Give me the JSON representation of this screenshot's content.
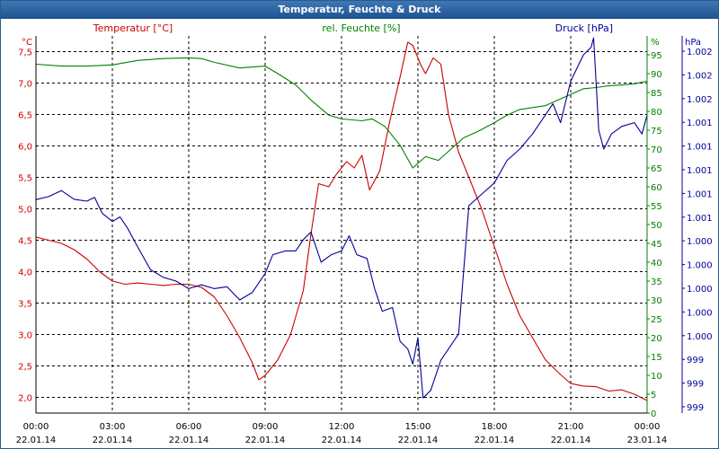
{
  "window": {
    "title": "Temperatur, Feuchte & Druck"
  },
  "colors": {
    "temp": "#cc0000",
    "hum": "#008000",
    "pres": "#000099",
    "grid": "#000000"
  },
  "chart_data": {
    "type": "line",
    "x_ticks": [
      {
        "time": "00:00",
        "date": "22.01.14"
      },
      {
        "time": "03:00",
        "date": "22.01.14"
      },
      {
        "time": "06:00",
        "date": "22.01.14"
      },
      {
        "time": "09:00",
        "date": "22.01.14"
      },
      {
        "time": "12:00",
        "date": "22.01.14"
      },
      {
        "time": "15:00",
        "date": "22.01.14"
      },
      {
        "time": "18:00",
        "date": "22.01.14"
      },
      {
        "time": "21:00",
        "date": "22.01.14"
      },
      {
        "time": "00:00",
        "date": "23.01.14"
      }
    ],
    "xlim_hours": [
      0,
      24
    ],
    "grid": true,
    "axes": {
      "temp": {
        "unit": "°C",
        "ylim": [
          1.75,
          7.75
        ],
        "ticks": [
          "2,0",
          "2,5",
          "3,0",
          "3,5",
          "4,0",
          "4,5",
          "5,0",
          "5,5",
          "6,0",
          "6,5",
          "7,0",
          "7,5"
        ]
      },
      "hum": {
        "unit": "%",
        "ylim": [
          0,
          100
        ],
        "ticks": [
          "0",
          "5",
          "10",
          "15",
          "20",
          "25",
          "30",
          "35",
          "40",
          "45",
          "50",
          "55",
          "60",
          "65",
          "70",
          "75",
          "80",
          "85",
          "90",
          "95"
        ]
      },
      "pres": {
        "unit": "hPa",
        "ticks": [
          "999",
          "999",
          "999",
          "1.000",
          "1.000",
          "1.000",
          "1.000",
          "1.000",
          "1.001",
          "1.001",
          "1.001",
          "1.001",
          "1.001",
          "1.002",
          "1.002",
          "1.002"
        ]
      }
    },
    "series": [
      {
        "name": "Temperatur [°C]",
        "axis": "temp",
        "points": [
          [
            0,
            4.55
          ],
          [
            0.5,
            4.5
          ],
          [
            1,
            4.45
          ],
          [
            1.5,
            4.35
          ],
          [
            2,
            4.2
          ],
          [
            2.5,
            4.0
          ],
          [
            3,
            3.85
          ],
          [
            3.5,
            3.8
          ],
          [
            4,
            3.82
          ],
          [
            4.5,
            3.8
          ],
          [
            5,
            3.78
          ],
          [
            5.5,
            3.8
          ],
          [
            6,
            3.8
          ],
          [
            6.5,
            3.75
          ],
          [
            7,
            3.6
          ],
          [
            7.5,
            3.3
          ],
          [
            8,
            2.95
          ],
          [
            8.5,
            2.55
          ],
          [
            8.75,
            2.28
          ],
          [
            9,
            2.35
          ],
          [
            9.5,
            2.6
          ],
          [
            10,
            3.0
          ],
          [
            10.5,
            3.7
          ],
          [
            10.8,
            4.6
          ],
          [
            11.1,
            5.4
          ],
          [
            11.5,
            5.35
          ],
          [
            11.8,
            5.55
          ],
          [
            12.2,
            5.75
          ],
          [
            12.5,
            5.65
          ],
          [
            12.8,
            5.85
          ],
          [
            13.1,
            5.3
          ],
          [
            13.5,
            5.6
          ],
          [
            13.9,
            6.4
          ],
          [
            14.3,
            7.1
          ],
          [
            14.6,
            7.65
          ],
          [
            14.8,
            7.6
          ],
          [
            15.1,
            7.3
          ],
          [
            15.3,
            7.15
          ],
          [
            15.6,
            7.4
          ],
          [
            15.9,
            7.3
          ],
          [
            16.2,
            6.5
          ],
          [
            16.6,
            5.9
          ],
          [
            17,
            5.5
          ],
          [
            17.5,
            5.0
          ],
          [
            18,
            4.4
          ],
          [
            18.5,
            3.8
          ],
          [
            19,
            3.3
          ],
          [
            19.5,
            2.95
          ],
          [
            20,
            2.6
          ],
          [
            20.5,
            2.4
          ],
          [
            21,
            2.22
          ],
          [
            21.5,
            2.18
          ],
          [
            22,
            2.17
          ],
          [
            22.5,
            2.1
          ],
          [
            23,
            2.12
          ],
          [
            23.5,
            2.05
          ],
          [
            24,
            1.95
          ]
        ]
      },
      {
        "name": "rel. Feuchte [%]",
        "axis": "hum",
        "points": [
          [
            0,
            92.5
          ],
          [
            1,
            92
          ],
          [
            2,
            92
          ],
          [
            3,
            92.3
          ],
          [
            4,
            93.5
          ],
          [
            5,
            94
          ],
          [
            6,
            94.2
          ],
          [
            6.5,
            94
          ],
          [
            7,
            93
          ],
          [
            8,
            91.5
          ],
          [
            9,
            92
          ],
          [
            9.5,
            90
          ],
          [
            10.2,
            87
          ],
          [
            10.8,
            83
          ],
          [
            11.5,
            79
          ],
          [
            12,
            78
          ],
          [
            12.8,
            77.5
          ],
          [
            13.2,
            78
          ],
          [
            13.7,
            76
          ],
          [
            14.3,
            71
          ],
          [
            14.8,
            65
          ],
          [
            15.3,
            68
          ],
          [
            15.8,
            67
          ],
          [
            16.3,
            70
          ],
          [
            16.8,
            73
          ],
          [
            17.3,
            74.5
          ],
          [
            18,
            77
          ],
          [
            18.5,
            79
          ],
          [
            19,
            80.5
          ],
          [
            19.5,
            81
          ],
          [
            20,
            81.5
          ],
          [
            20.5,
            83
          ],
          [
            21,
            84.5
          ],
          [
            21.5,
            86
          ],
          [
            22,
            86.3
          ],
          [
            22.5,
            86.8
          ],
          [
            23,
            87
          ],
          [
            23.5,
            87.3
          ],
          [
            24,
            88
          ]
        ]
      },
      {
        "name": "Druck [hPa]",
        "axis": "pres",
        "points": [
          [
            0,
            0.566
          ],
          [
            0.5,
            0.574
          ],
          [
            1,
            0.59
          ],
          [
            1.5,
            0.567
          ],
          [
            2,
            0.562
          ],
          [
            2.3,
            0.572
          ],
          [
            2.6,
            0.53
          ],
          [
            3,
            0.508
          ],
          [
            3.3,
            0.52
          ],
          [
            3.6,
            0.49
          ],
          [
            4,
            0.44
          ],
          [
            4.5,
            0.38
          ],
          [
            5,
            0.36
          ],
          [
            5.5,
            0.35
          ],
          [
            6,
            0.33
          ],
          [
            6.5,
            0.34
          ],
          [
            7,
            0.33
          ],
          [
            7.5,
            0.335
          ],
          [
            8,
            0.3
          ],
          [
            8.5,
            0.32
          ],
          [
            9,
            0.37
          ],
          [
            9.3,
            0.42
          ],
          [
            9.8,
            0.43
          ],
          [
            10.2,
            0.43
          ],
          [
            10.5,
            0.46
          ],
          [
            10.8,
            0.48
          ],
          [
            11.2,
            0.4
          ],
          [
            11.6,
            0.42
          ],
          [
            12,
            0.43
          ],
          [
            12.3,
            0.47
          ],
          [
            12.6,
            0.42
          ],
          [
            13,
            0.41
          ],
          [
            13.3,
            0.33
          ],
          [
            13.6,
            0.27
          ],
          [
            14,
            0.28
          ],
          [
            14.3,
            0.19
          ],
          [
            14.6,
            0.17
          ],
          [
            14.8,
            0.13
          ],
          [
            15,
            0.2
          ],
          [
            15.2,
            0.04
          ],
          [
            15.5,
            0.06
          ],
          [
            15.9,
            0.14
          ],
          [
            16.3,
            0.18
          ],
          [
            16.6,
            0.21
          ],
          [
            17,
            0.55
          ],
          [
            17.5,
            0.58
          ],
          [
            18,
            0.61
          ],
          [
            18.5,
            0.67
          ],
          [
            19,
            0.7
          ],
          [
            19.5,
            0.74
          ],
          [
            20,
            0.79
          ],
          [
            20.3,
            0.82
          ],
          [
            20.6,
            0.77
          ],
          [
            21,
            0.88
          ],
          [
            21.5,
            0.95
          ],
          [
            21.8,
            0.97
          ],
          [
            21.9,
            0.995
          ],
          [
            22.1,
            0.75
          ],
          [
            22.3,
            0.7
          ],
          [
            22.6,
            0.74
          ],
          [
            23,
            0.76
          ],
          [
            23.5,
            0.77
          ],
          [
            23.8,
            0.74
          ],
          [
            24,
            0.79
          ]
        ]
      }
    ]
  }
}
